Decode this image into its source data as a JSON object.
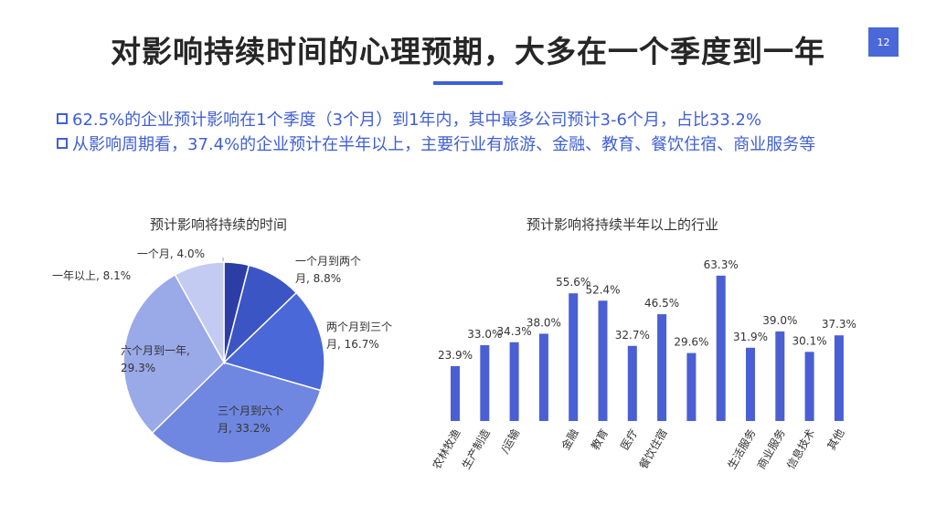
{
  "title": "对影响持续时间的心理预期，大多在一个季度到一年",
  "page_number": "12",
  "bullets": [
    "62.5%的企业预计影响在1个季度（3个月）到1年内，其中最多公司预计3-6个月，占比33.2%",
    "从影响周期看，37.4%的企业预计在半年以上，主要行业有旅游、金融、教育、餐饮住宿、商业服务等"
  ],
  "colors": {
    "accent": "#3f5fd6",
    "bar": "#4a5fd4"
  },
  "chart_data": [
    {
      "type": "pie",
      "title": "预计影响将持续的时间",
      "slices": [
        {
          "label": "一个月, 4.0%",
          "label_lines": [
            "一个月, 4.0%"
          ],
          "value": 4.0,
          "color": "#2d3da6"
        },
        {
          "label": "一个月到两个月, 8.8%",
          "label_lines": [
            "一个月到两个",
            "月, 8.8%"
          ],
          "value": 8.8,
          "color": "#3b55c4"
        },
        {
          "label": "两个月到三个月, 16.7%",
          "label_lines": [
            "两个月到三个",
            "月, 16.7%"
          ],
          "value": 16.7,
          "color": "#4a68d8"
        },
        {
          "label": "三个月到六个月, 33.2%",
          "label_lines": [
            "三个月到六个",
            "月, 33.2%"
          ],
          "value": 33.2,
          "color": "#6f87e0"
        },
        {
          "label": "六个月到一年, 29.3%",
          "label_lines": [
            "六个月到一年,",
            "29.3%"
          ],
          "value": 29.3,
          "color": "#9aa9e8"
        },
        {
          "label": "一年以上, 8.1%",
          "label_lines": [
            "一年以上, 8.1%"
          ],
          "value": 8.1,
          "color": "#c3cbf2"
        }
      ]
    },
    {
      "type": "bar",
      "title": "预计影响将持续半年以上的行业",
      "categories": [
        "农林牧渔",
        "生产制造",
        "/运输",
        "",
        "金融",
        "教育",
        "医疗",
        "餐饮住宿",
        "",
        "",
        "生活服务",
        "商业服务",
        "信息技术",
        "其他"
      ],
      "values": [
        23.9,
        33.0,
        34.3,
        38.0,
        55.6,
        52.4,
        32.7,
        46.5,
        29.6,
        63.3,
        31.9,
        39.0,
        30.1,
        37.3
      ],
      "value_labels": [
        "23.9%",
        "33.0%",
        "34.3%",
        "38.0%",
        "55.6%",
        "52.4%",
        "32.7%",
        "46.5%",
        "29.6%",
        "63.3%",
        "31.9%",
        "39.0%",
        "30.1%",
        "37.3%"
      ],
      "ylim": [
        0,
        70
      ],
      "grid": false
    }
  ]
}
